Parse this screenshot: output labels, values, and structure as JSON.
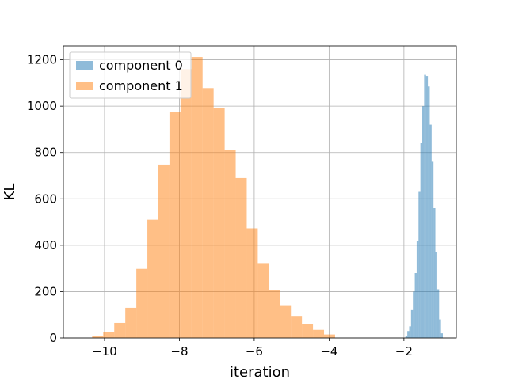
{
  "chart_data": {
    "type": "histogram",
    "xlabel": "iteration",
    "ylabel": "KL",
    "xlim": [
      -11.1,
      -0.6
    ],
    "ylim": [
      0,
      1260
    ],
    "grid": true,
    "legend_position": "top-left",
    "xticks": [
      -10,
      -8,
      -6,
      -4,
      -2
    ],
    "xtick_labels": [
      "−10",
      "−8",
      "−6",
      "−4",
      "−2"
    ],
    "yticks": [
      0,
      200,
      400,
      600,
      800,
      1000,
      1200
    ],
    "ytick_labels": [
      "0",
      "200",
      "400",
      "600",
      "800",
      "1000",
      "1200"
    ],
    "series": [
      {
        "name": "component 0",
        "color": "#1f77b4",
        "opacity": 0.5,
        "bin_width": 0.05,
        "bins": [
          {
            "x": -1.96,
            "y": 10
          },
          {
            "x": -1.91,
            "y": 30
          },
          {
            "x": -1.86,
            "y": 50
          },
          {
            "x": -1.81,
            "y": 120
          },
          {
            "x": -1.76,
            "y": 200
          },
          {
            "x": -1.71,
            "y": 280
          },
          {
            "x": -1.66,
            "y": 420
          },
          {
            "x": -1.61,
            "y": 630
          },
          {
            "x": -1.56,
            "y": 840
          },
          {
            "x": -1.51,
            "y": 1000
          },
          {
            "x": -1.46,
            "y": 1135
          },
          {
            "x": -1.41,
            "y": 1130
          },
          {
            "x": -1.36,
            "y": 1085
          },
          {
            "x": -1.31,
            "y": 920
          },
          {
            "x": -1.26,
            "y": 760
          },
          {
            "x": -1.21,
            "y": 560
          },
          {
            "x": -1.16,
            "y": 370
          },
          {
            "x": -1.11,
            "y": 210
          },
          {
            "x": -1.06,
            "y": 80
          },
          {
            "x": -1.01,
            "y": 20
          }
        ]
      },
      {
        "name": "component 1",
        "color": "#ff7f0e",
        "opacity": 0.5,
        "bin_width": 0.295,
        "bins": [
          {
            "x": -10.33,
            "y": 8
          },
          {
            "x": -10.035,
            "y": 25
          },
          {
            "x": -9.74,
            "y": 65
          },
          {
            "x": -9.445,
            "y": 130
          },
          {
            "x": -9.15,
            "y": 298
          },
          {
            "x": -8.855,
            "y": 510
          },
          {
            "x": -8.56,
            "y": 748
          },
          {
            "x": -8.265,
            "y": 975
          },
          {
            "x": -7.97,
            "y": 1160
          },
          {
            "x": -7.675,
            "y": 1212
          },
          {
            "x": -7.38,
            "y": 1078
          },
          {
            "x": -7.085,
            "y": 993
          },
          {
            "x": -6.79,
            "y": 810
          },
          {
            "x": -6.495,
            "y": 690
          },
          {
            "x": -6.2,
            "y": 473
          },
          {
            "x": -5.905,
            "y": 323
          },
          {
            "x": -5.61,
            "y": 205
          },
          {
            "x": -5.315,
            "y": 138
          },
          {
            "x": -5.02,
            "y": 95
          },
          {
            "x": -4.725,
            "y": 60
          },
          {
            "x": -4.43,
            "y": 35
          },
          {
            "x": -4.135,
            "y": 15
          }
        ]
      }
    ]
  }
}
